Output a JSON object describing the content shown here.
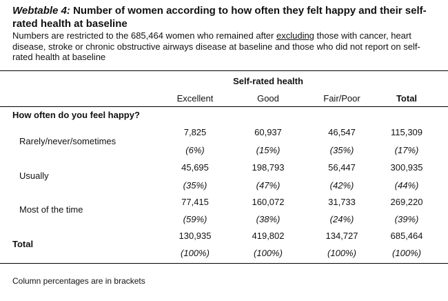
{
  "title": {
    "label": "Webtable 4:",
    "text": " Number of women according to how often they felt happy and their self-rated health at baseline"
  },
  "description": {
    "before": "Numbers are restricted to the 685,464 women who remained after ",
    "underlined": "excluding",
    "after": " those with cancer, heart disease, stroke or chronic obstructive airways disease at baseline and those who did not report on self-rated health at baseline"
  },
  "table": {
    "group_header": "Self-rated health",
    "columns": [
      "Excellent",
      "Good",
      "Fair/Poor",
      "Total"
    ],
    "question": "How often do you feel happy?",
    "rows": [
      {
        "label": "Rarely/never/sometimes",
        "counts": [
          "7,825",
          "60,937",
          "46,547",
          "115,309"
        ],
        "percents": [
          "(6%)",
          "(15%)",
          "(35%)",
          "(17%)"
        ]
      },
      {
        "label": "Usually",
        "counts": [
          "45,695",
          "198,793",
          "56,447",
          "300,935"
        ],
        "percents": [
          "(35%)",
          "(47%)",
          "(42%)",
          "(44%)"
        ]
      },
      {
        "label": "Most of the time",
        "counts": [
          "77,415",
          "160,072",
          "31,733",
          "269,220"
        ],
        "percents": [
          "(59%)",
          "(38%)",
          "(24%)",
          "(39%)"
        ]
      },
      {
        "label": "Total",
        "counts": [
          "130,935",
          "419,802",
          "134,727",
          "685,464"
        ],
        "percents": [
          "(100%)",
          "(100%)",
          "(100%)",
          "(100%)"
        ]
      }
    ]
  },
  "footnote": "Column percentages are in brackets"
}
